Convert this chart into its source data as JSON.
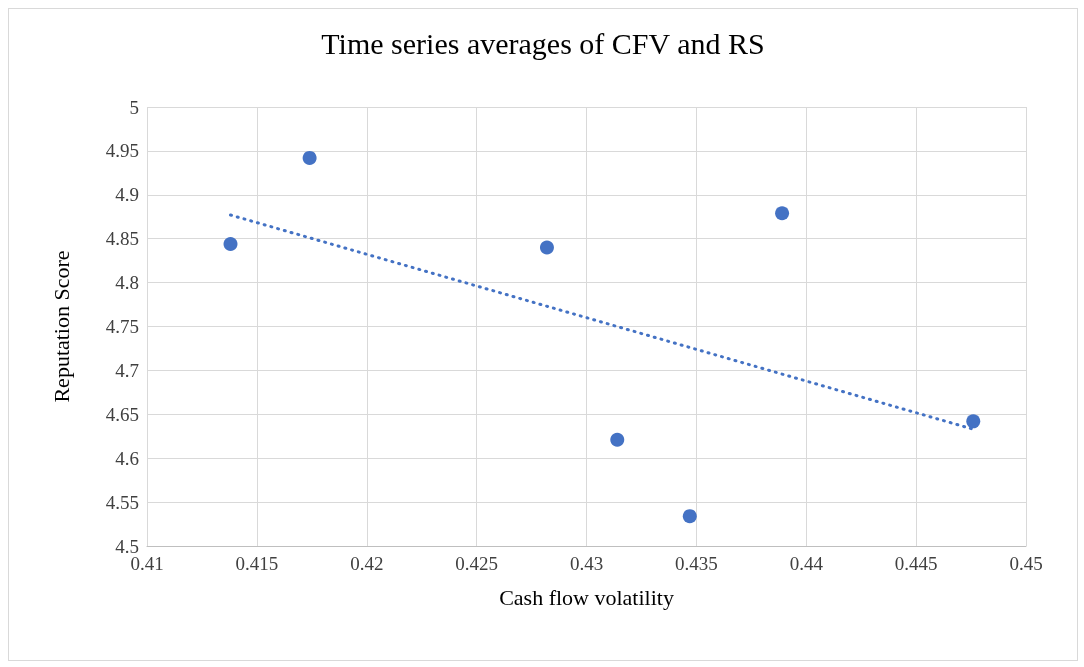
{
  "chart_data": {
    "type": "scatter",
    "title": "Time series averages of CFV and RS",
    "xlabel": "Cash flow volatility",
    "ylabel": "Reputation Score",
    "xlim": [
      0.41,
      0.45
    ],
    "xticks": [
      0.41,
      0.415,
      0.42,
      0.425,
      0.43,
      0.435,
      0.44,
      0.445,
      0.45
    ],
    "ylim": [
      4.5,
      5
    ],
    "yticks": [
      4.5,
      4.55,
      4.6,
      4.65,
      4.7,
      4.75,
      4.8,
      4.85,
      4.9,
      4.95,
      5
    ],
    "grid": true,
    "marker": "circle",
    "series": [
      {
        "color": "#4472c4",
        "x": [
          0.4138,
          0.4174,
          0.4282,
          0.4314,
          0.4347,
          0.4389,
          0.4476
        ],
        "values": [
          4.844,
          4.942,
          4.84,
          4.621,
          4.534,
          4.879,
          4.642
        ]
      },
      {
        "type": "line",
        "color": "#4472c4",
        "line_style": "dotted",
        "marker": "none",
        "x": [
          0.4138,
          0.4476
        ],
        "values": [
          4.877,
          4.633
        ]
      }
    ]
  }
}
